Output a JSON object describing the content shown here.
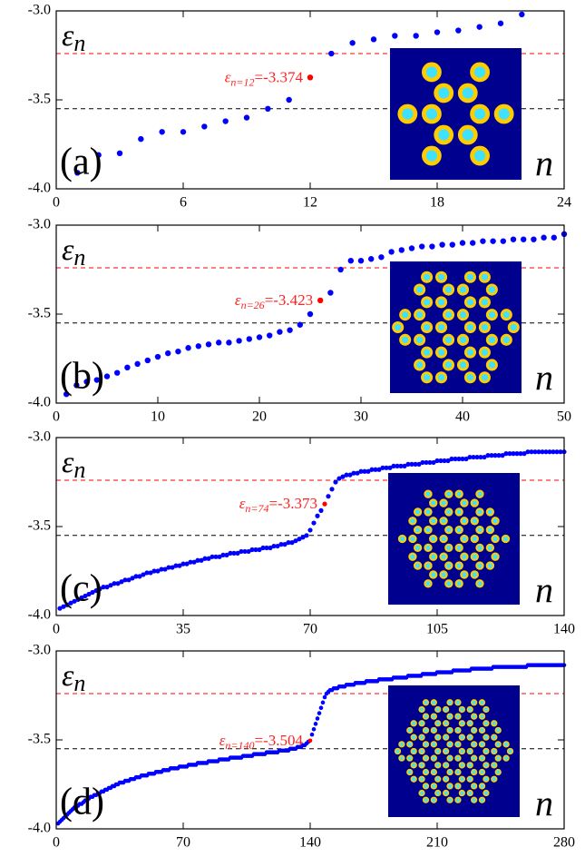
{
  "chart_data": [
    {
      "type": "scatter",
      "panel_label": "(a)",
      "ylabel_symbol": "ε",
      "ylabel_subscript": "n",
      "xlabel": "n",
      "color": "#0000ff",
      "xlim": [
        0,
        24
      ],
      "xticks": [
        0,
        6,
        12,
        18,
        24
      ],
      "ylim": [
        -4.0,
        -3.0
      ],
      "yticks": [
        {
          "value": -3.0,
          "label": "-3.0"
        },
        {
          "value": -3.5,
          "label": "-3.5"
        },
        {
          "value": -4.0,
          "label": "-4.0"
        }
      ],
      "hlines": [
        {
          "value": -3.24,
          "color": "#ff0000"
        },
        {
          "value": -3.55,
          "color": "#000000"
        }
      ],
      "highlight": {
        "x": 12,
        "value": -3.374,
        "color": "#ff0000",
        "label_symbol": "ε",
        "label_subscript": "n=12",
        "label_value": "=-3.374"
      },
      "x": [
        1,
        2,
        3,
        4,
        5,
        6,
        7,
        8,
        9,
        10,
        11,
        13,
        14,
        15,
        16,
        17,
        18,
        19,
        20,
        21,
        22
      ],
      "values": [
        -3.91,
        -3.81,
        -3.8,
        -3.72,
        -3.68,
        -3.68,
        -3.65,
        -3.62,
        -3.6,
        -3.55,
        -3.5,
        -3.24,
        -3.18,
        -3.16,
        -3.14,
        -3.14,
        -3.12,
        -3.11,
        -3.09,
        -3.07,
        -3.02
      ]
    },
    {
      "type": "scatter",
      "panel_label": "(b)",
      "ylabel_symbol": "ε",
      "ylabel_subscript": "n",
      "xlabel": "n",
      "color": "#0000ff",
      "xlim": [
        0,
        50
      ],
      "xticks": [
        0,
        10,
        20,
        30,
        40,
        50
      ],
      "ylim": [
        -4.0,
        -3.0
      ],
      "yticks": [
        {
          "value": -3.0,
          "label": "-3.0"
        },
        {
          "value": -3.5,
          "label": "-3.5"
        },
        {
          "value": -4.0,
          "label": "-4.0"
        }
      ],
      "hlines": [
        {
          "value": -3.24,
          "color": "#ff0000"
        },
        {
          "value": -3.55,
          "color": "#000000"
        }
      ],
      "highlight": {
        "x": 26,
        "value": -3.423,
        "color": "#ff0000",
        "label_symbol": "ε",
        "label_subscript": "n=26",
        "label_value": "=-3.423"
      },
      "x": [
        1,
        2,
        3,
        4,
        5,
        6,
        7,
        8,
        9,
        10,
        11,
        12,
        13,
        14,
        15,
        16,
        17,
        18,
        19,
        20,
        21,
        22,
        23,
        24,
        25,
        27,
        28,
        29,
        30,
        31,
        32,
        33,
        34,
        35,
        36,
        37,
        38,
        39,
        40,
        41,
        42,
        43,
        44,
        45,
        46,
        47,
        48,
        49,
        50
      ],
      "values": [
        -3.95,
        -3.9,
        -3.88,
        -3.87,
        -3.85,
        -3.83,
        -3.8,
        -3.78,
        -3.76,
        -3.74,
        -3.72,
        -3.71,
        -3.69,
        -3.68,
        -3.67,
        -3.66,
        -3.66,
        -3.65,
        -3.64,
        -3.63,
        -3.62,
        -3.6,
        -3.59,
        -3.56,
        -3.5,
        -3.38,
        -3.25,
        -3.2,
        -3.2,
        -3.19,
        -3.18,
        -3.15,
        -3.14,
        -3.13,
        -3.12,
        -3.12,
        -3.11,
        -3.11,
        -3.1,
        -3.1,
        -3.09,
        -3.09,
        -3.09,
        -3.08,
        -3.08,
        -3.08,
        -3.07,
        -3.07,
        -3.05
      ]
    },
    {
      "type": "scatter",
      "panel_label": "(c)",
      "ylabel_symbol": "ε",
      "ylabel_subscript": "n",
      "xlabel": "n",
      "color": "#0000ff",
      "xlim": [
        0,
        140
      ],
      "xticks": [
        0,
        35,
        70,
        105,
        140
      ],
      "ylim": [
        -4.0,
        -3.0
      ],
      "yticks": [
        {
          "value": -3.0,
          "label": "-3.0"
        },
        {
          "value": -3.5,
          "label": "-3.5"
        },
        {
          "value": -4.0,
          "label": "-4.0"
        }
      ],
      "hlines": [
        {
          "value": -3.24,
          "color": "#ff0000"
        },
        {
          "value": -3.55,
          "color": "#000000"
        }
      ],
      "highlight": {
        "x": 74,
        "value": -3.373,
        "color": "#ff0000",
        "label_symbol": "ε",
        "label_subscript": "n=74",
        "label_value": "=-3.373"
      },
      "x": [
        1,
        2,
        3,
        4,
        5,
        6,
        7,
        8,
        9,
        10,
        11,
        12,
        13,
        14,
        15,
        16,
        17,
        18,
        19,
        20,
        21,
        22,
        23,
        24,
        25,
        26,
        27,
        28,
        29,
        30,
        31,
        32,
        33,
        34,
        35,
        36,
        37,
        38,
        39,
        40,
        41,
        42,
        43,
        44,
        45,
        46,
        47,
        48,
        49,
        50,
        51,
        52,
        53,
        54,
        55,
        56,
        57,
        58,
        59,
        60,
        61,
        62,
        63,
        64,
        65,
        66,
        67,
        68,
        69,
        70,
        71,
        72,
        73,
        75,
        76,
        77,
        78,
        79,
        80,
        81,
        82,
        83,
        84,
        85,
        86,
        87,
        88,
        89,
        90,
        91,
        92,
        93,
        94,
        95,
        96,
        97,
        98,
        99,
        100,
        101,
        102,
        103,
        104,
        105,
        106,
        107,
        108,
        109,
        110,
        111,
        112,
        113,
        114,
        115,
        116,
        117,
        118,
        119,
        120,
        121,
        122,
        123,
        124,
        125,
        126,
        127,
        128,
        129,
        130,
        131,
        132,
        133,
        134,
        135,
        136,
        137,
        138,
        139,
        140
      ],
      "values": [
        -3.96,
        -3.95,
        -3.94,
        -3.93,
        -3.92,
        -3.91,
        -3.9,
        -3.89,
        -3.88,
        -3.87,
        -3.86,
        -3.85,
        -3.84,
        -3.84,
        -3.83,
        -3.82,
        -3.82,
        -3.81,
        -3.8,
        -3.8,
        -3.79,
        -3.78,
        -3.78,
        -3.77,
        -3.76,
        -3.76,
        -3.75,
        -3.75,
        -3.74,
        -3.74,
        -3.73,
        -3.73,
        -3.72,
        -3.72,
        -3.71,
        -3.71,
        -3.7,
        -3.7,
        -3.69,
        -3.69,
        -3.68,
        -3.68,
        -3.67,
        -3.67,
        -3.67,
        -3.66,
        -3.66,
        -3.65,
        -3.65,
        -3.65,
        -3.64,
        -3.64,
        -3.64,
        -3.63,
        -3.63,
        -3.63,
        -3.62,
        -3.62,
        -3.62,
        -3.61,
        -3.61,
        -3.6,
        -3.6,
        -3.59,
        -3.59,
        -3.58,
        -3.57,
        -3.56,
        -3.55,
        -3.52,
        -3.48,
        -3.44,
        -3.41,
        -3.33,
        -3.29,
        -3.25,
        -3.23,
        -3.22,
        -3.21,
        -3.21,
        -3.2,
        -3.2,
        -3.19,
        -3.19,
        -3.19,
        -3.18,
        -3.18,
        -3.18,
        -3.17,
        -3.17,
        -3.17,
        -3.16,
        -3.16,
        -3.16,
        -3.16,
        -3.15,
        -3.15,
        -3.15,
        -3.15,
        -3.14,
        -3.14,
        -3.14,
        -3.14,
        -3.13,
        -3.13,
        -3.13,
        -3.13,
        -3.12,
        -3.12,
        -3.12,
        -3.12,
        -3.12,
        -3.11,
        -3.11,
        -3.11,
        -3.11,
        -3.11,
        -3.1,
        -3.1,
        -3.1,
        -3.1,
        -3.1,
        -3.09,
        -3.09,
        -3.09,
        -3.09,
        -3.09,
        -3.09,
        -3.08,
        -3.08,
        -3.08,
        -3.08,
        -3.08,
        -3.08,
        -3.08,
        -3.08,
        -3.08,
        -3.08,
        -3.08
      ]
    },
    {
      "type": "scatter",
      "panel_label": "(d)",
      "ylabel_symbol": "ε",
      "ylabel_subscript": "n",
      "xlabel": "n",
      "color": "#0000ff",
      "xlim": [
        0,
        280
      ],
      "xticks": [
        0,
        70,
        140,
        210,
        280
      ],
      "ylim": [
        -4.0,
        -3.0
      ],
      "yticks": [
        {
          "value": -3.0,
          "label": "-3.0"
        },
        {
          "value": -3.5,
          "label": "-3.5"
        },
        {
          "value": -4.0,
          "label": "-4.0"
        }
      ],
      "hlines": [
        {
          "value": -3.24,
          "color": "#ff0000"
        },
        {
          "value": -3.55,
          "color": "#000000"
        }
      ],
      "highlight": {
        "x": 140,
        "value": -3.504,
        "color": "#ff0000",
        "label_symbol": "ε",
        "label_subscript": "n=140",
        "label_value": "=-3.504"
      },
      "x": [
        1,
        2,
        3,
        4,
        5,
        6,
        7,
        8,
        9,
        10,
        11,
        12,
        13,
        14,
        15,
        16,
        17,
        18,
        19,
        20,
        21,
        22,
        23,
        24,
        25,
        26,
        27,
        28,
        29,
        30,
        31,
        32,
        33,
        34,
        35,
        36,
        37,
        38,
        39,
        40,
        41,
        42,
        43,
        44,
        45,
        46,
        47,
        48,
        49,
        50,
        51,
        52,
        53,
        54,
        55,
        56,
        57,
        58,
        59,
        60,
        61,
        62,
        63,
        64,
        65,
        66,
        67,
        68,
        69,
        70,
        71,
        72,
        73,
        74,
        75,
        76,
        77,
        78,
        79,
        80,
        81,
        82,
        83,
        84,
        85,
        86,
        87,
        88,
        89,
        90,
        91,
        92,
        93,
        94,
        95,
        96,
        97,
        98,
        99,
        100,
        101,
        102,
        103,
        104,
        105,
        106,
        107,
        108,
        109,
        110,
        111,
        112,
        113,
        114,
        115,
        116,
        117,
        118,
        119,
        120,
        121,
        122,
        123,
        124,
        125,
        126,
        127,
        128,
        129,
        130,
        131,
        132,
        133,
        134,
        135,
        136,
        137,
        138,
        139,
        141,
        142,
        143,
        144,
        145,
        146,
        147,
        148,
        149,
        150,
        151,
        152,
        153,
        154,
        155,
        156,
        157,
        158,
        159,
        160,
        161,
        162,
        163,
        164,
        165,
        166,
        167,
        168,
        169,
        170,
        171,
        172,
        173,
        174,
        175,
        176,
        177,
        178,
        179,
        180,
        181,
        182,
        183,
        184,
        185,
        186,
        187,
        188,
        189,
        190,
        191,
        192,
        193,
        194,
        195,
        196,
        197,
        198,
        199,
        200,
        201,
        202,
        203,
        204,
        205,
        206,
        207,
        208,
        209,
        210,
        211,
        212,
        213,
        214,
        215,
        216,
        217,
        218,
        219,
        220,
        221,
        222,
        223,
        224,
        225,
        226,
        227,
        228,
        229,
        230,
        231,
        232,
        233,
        234,
        235,
        236,
        237,
        238,
        239,
        240,
        241,
        242,
        243,
        244,
        245,
        246,
        247,
        248,
        249,
        250,
        251,
        252,
        253,
        254,
        255,
        256,
        257,
        258,
        259,
        260,
        261,
        262,
        263,
        264,
        265,
        266,
        267,
        268,
        269,
        270,
        271,
        272,
        273,
        274,
        275,
        276,
        277,
        278,
        279,
        280
      ],
      "values": [
        -3.97,
        -3.96,
        -3.95,
        -3.94,
        -3.93,
        -3.92,
        -3.91,
        -3.9,
        -3.89,
        -3.88,
        -3.88,
        -3.87,
        -3.86,
        -3.86,
        -3.85,
        -3.84,
        -3.84,
        -3.83,
        -3.82,
        -3.82,
        -3.81,
        -3.81,
        -3.8,
        -3.8,
        -3.79,
        -3.79,
        -3.78,
        -3.78,
        -3.77,
        -3.77,
        -3.76,
        -3.76,
        -3.75,
        -3.75,
        -3.74,
        -3.74,
        -3.74,
        -3.73,
        -3.73,
        -3.73,
        -3.72,
        -3.72,
        -3.72,
        -3.71,
        -3.71,
        -3.71,
        -3.7,
        -3.7,
        -3.7,
        -3.7,
        -3.69,
        -3.69,
        -3.69,
        -3.69,
        -3.68,
        -3.68,
        -3.68,
        -3.68,
        -3.67,
        -3.67,
        -3.67,
        -3.67,
        -3.66,
        -3.66,
        -3.66,
        -3.66,
        -3.66,
        -3.65,
        -3.65,
        -3.65,
        -3.65,
        -3.65,
        -3.64,
        -3.64,
        -3.64,
        -3.64,
        -3.64,
        -3.63,
        -3.63,
        -3.63,
        -3.63,
        -3.63,
        -3.63,
        -3.62,
        -3.62,
        -3.62,
        -3.62,
        -3.62,
        -3.62,
        -3.61,
        -3.61,
        -3.61,
        -3.61,
        -3.61,
        -3.61,
        -3.6,
        -3.6,
        -3.6,
        -3.6,
        -3.6,
        -3.6,
        -3.6,
        -3.59,
        -3.59,
        -3.59,
        -3.59,
        -3.59,
        -3.59,
        -3.58,
        -3.58,
        -3.58,
        -3.58,
        -3.58,
        -3.58,
        -3.58,
        -3.57,
        -3.57,
        -3.57,
        -3.57,
        -3.57,
        -3.57,
        -3.57,
        -3.56,
        -3.56,
        -3.56,
        -3.56,
        -3.56,
        -3.56,
        -3.55,
        -3.55,
        -3.55,
        -3.55,
        -3.54,
        -3.54,
        -3.54,
        -3.53,
        -3.53,
        -3.52,
        -3.51,
        -3.47,
        -3.44,
        -3.41,
        -3.38,
        -3.35,
        -3.32,
        -3.29,
        -3.26,
        -3.24,
        -3.23,
        -3.22,
        -3.22,
        -3.21,
        -3.21,
        -3.21,
        -3.2,
        -3.2,
        -3.2,
        -3.2,
        -3.19,
        -3.19,
        -3.19,
        -3.19,
        -3.19,
        -3.18,
        -3.18,
        -3.18,
        -3.18,
        -3.18,
        -3.18,
        -3.17,
        -3.17,
        -3.17,
        -3.17,
        -3.17,
        -3.17,
        -3.17,
        -3.16,
        -3.16,
        -3.16,
        -3.16,
        -3.16,
        -3.16,
        -3.16,
        -3.16,
        -3.15,
        -3.15,
        -3.15,
        -3.15,
        -3.15,
        -3.15,
        -3.15,
        -3.15,
        -3.14,
        -3.14,
        -3.14,
        -3.14,
        -3.14,
        -3.14,
        -3.14,
        -3.14,
        -3.13,
        -3.13,
        -3.13,
        -3.13,
        -3.13,
        -3.13,
        -3.13,
        -3.13,
        -3.12,
        -3.12,
        -3.12,
        -3.12,
        -3.12,
        -3.12,
        -3.12,
        -3.12,
        -3.12,
        -3.11,
        -3.11,
        -3.11,
        -3.11,
        -3.11,
        -3.11,
        -3.11,
        -3.11,
        -3.11,
        -3.11,
        -3.1,
        -3.1,
        -3.1,
        -3.1,
        -3.1,
        -3.1,
        -3.1,
        -3.1,
        -3.1,
        -3.1,
        -3.1,
        -3.1,
        -3.09,
        -3.09,
        -3.09,
        -3.09,
        -3.09,
        -3.09,
        -3.09,
        -3.09,
        -3.09,
        -3.09,
        -3.09,
        -3.09,
        -3.09,
        -3.09,
        -3.09,
        -3.09,
        -3.09,
        -3.09,
        -3.09,
        -3.08,
        -3.08,
        -3.08,
        -3.08,
        -3.08,
        -3.08,
        -3.08,
        -3.08,
        -3.08,
        -3.08,
        -3.08,
        -3.08,
        -3.08,
        -3.08,
        -3.08,
        -3.08,
        -3.08,
        -3.08,
        -3.08,
        -3.08,
        -3.08
      ]
    }
  ]
}
